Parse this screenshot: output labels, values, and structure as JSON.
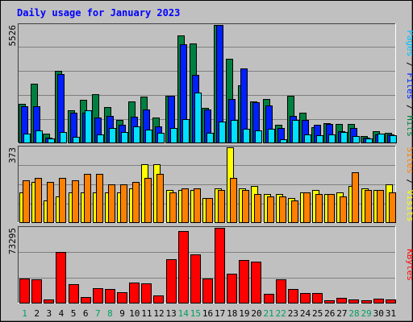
{
  "chart_data": {
    "type": "bar",
    "title": "Daily usage for January 2023",
    "categories": [
      "1",
      "2",
      "3",
      "4",
      "5",
      "6",
      "7",
      "8",
      "9",
      "10",
      "11",
      "12",
      "13",
      "14",
      "15",
      "16",
      "17",
      "18",
      "19",
      "20",
      "21",
      "22",
      "23",
      "24",
      "25",
      "26",
      "27",
      "28",
      "29",
      "30",
      "31"
    ],
    "weekend_days": [
      1,
      7,
      8,
      14,
      15,
      21,
      22,
      28,
      29
    ],
    "panels": [
      {
        "name": "hits",
        "max_label": "5526",
        "ylim": [
          0,
          5526
        ],
        "right_labels": [
          {
            "text": "Pages",
            "color": "#00c0ff"
          },
          {
            "text": "Files",
            "color": "#0020ff"
          },
          {
            "text": "Hits",
            "color": "#008040"
          }
        ],
        "series": [
          {
            "name": "Hits",
            "color": "#008040",
            "values": [
              1820,
              2750,
              400,
              3380,
              1500,
              1990,
              2280,
              1680,
              1070,
              1920,
              2150,
              1160,
              2200,
              5040,
              4660,
              1610,
              5526,
              3950,
              2700,
              1920,
              2050,
              820,
              2200,
              1400,
              720,
              920,
              860,
              880,
              320,
              520,
              460
            ]
          },
          {
            "name": "Files",
            "color": "#0020ff",
            "values": [
              1700,
              1700,
              240,
              3200,
              1400,
              1400,
              1180,
              1250,
              850,
              1230,
              1560,
              740,
              2180,
              4600,
              3170,
              1540,
              5526,
              2030,
              3480,
              1880,
              1750,
              700,
              1240,
              1070,
              840,
              880,
              540,
              690,
              240,
              360,
              360
            ]
          },
          {
            "name": "Pages",
            "color": "#00e0ff",
            "values": [
              400,
              580,
              180,
              480,
              280,
              1520,
              380,
              700,
              500,
              760,
              600,
              470,
              700,
              1080,
              2330,
              470,
              980,
              1060,
              660,
              550,
              650,
              150,
              1060,
              380,
              350,
              390,
              480,
              300,
              190,
              410,
              330
            ]
          }
        ]
      },
      {
        "name": "visits",
        "max_label": "373",
        "ylim": [
          0,
          373
        ],
        "right_labels": [
          {
            "text": "Sites",
            "color": "#ff8000"
          },
          {
            "text": "Visits",
            "color": "#ffff00"
          }
        ],
        "series": [
          {
            "name": "Visits",
            "color": "#ffff00",
            "values": [
              150,
              200,
              110,
              130,
              150,
              150,
              150,
              150,
              150,
              170,
              290,
              290,
              160,
              160,
              160,
              120,
              170,
              373,
              170,
              180,
              140,
              140,
              120,
              150,
              160,
              140,
              150,
              180,
              170,
              160,
              190
            ]
          },
          {
            "name": "Sites",
            "color": "#ff8000",
            "values": [
              210,
              220,
              200,
              220,
              210,
              240,
              240,
              190,
              190,
              200,
              220,
              240,
              150,
              170,
              170,
              120,
              160,
              220,
              160,
              140,
              130,
              130,
              110,
              150,
              140,
              140,
              130,
              250,
              160,
              160,
              150
            ]
          }
        ]
      },
      {
        "name": "kbytes",
        "max_label": "73295",
        "ylim": [
          0,
          73295
        ],
        "right_labels": [
          {
            "text": "KBytes",
            "color": "#ff0000"
          }
        ],
        "series": [
          {
            "name": "KBytes",
            "color": "#ff0000",
            "values": [
              23800,
              23200,
              3000,
              49500,
              18400,
              5600,
              14000,
              13600,
              10400,
              19600,
              19200,
              7000,
              42200,
              70500,
              47000,
              23400,
              73295,
              28300,
              41800,
              40000,
              8600,
              23200,
              13600,
              9300,
              9300,
              2100,
              4400,
              3100,
              2300,
              4000,
              3300
            ]
          }
        ]
      }
    ]
  }
}
